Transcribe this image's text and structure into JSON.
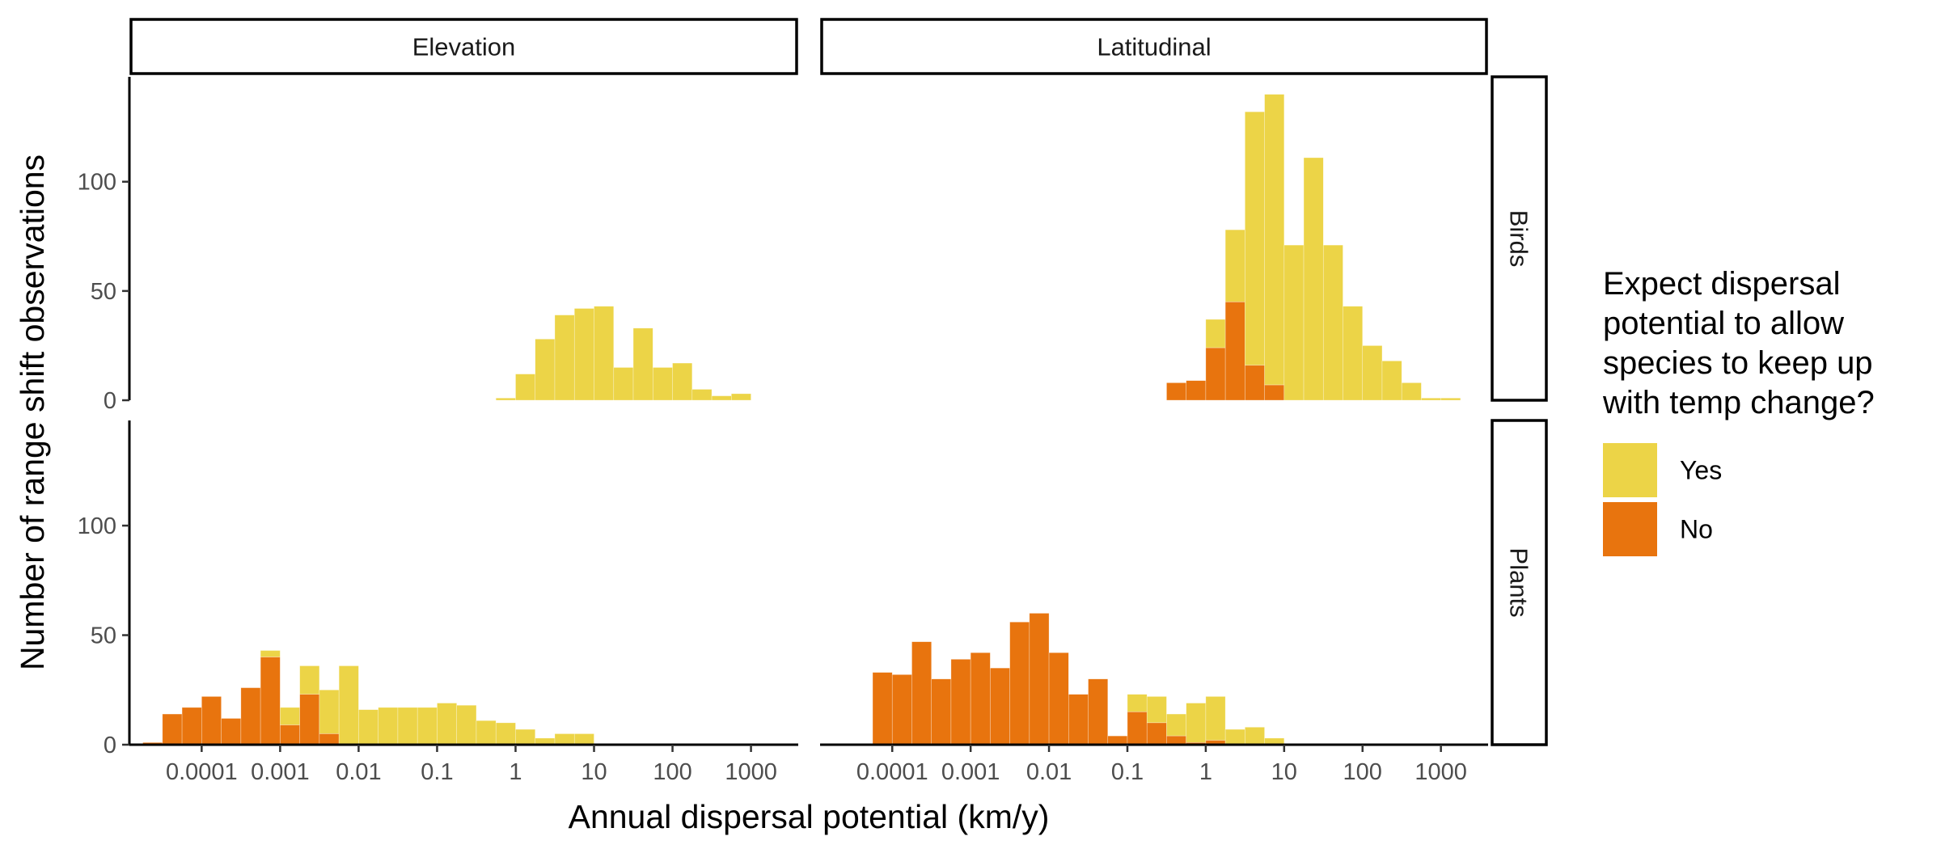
{
  "chart_data": {
    "type": "bar",
    "subtype": "stacked histogram, faceted",
    "xlabel": "Annual dispersal potential (km/y)",
    "ylabel": "Number of range shift observations",
    "x_scale": "log10",
    "xlim": [
      1.2e-05,
      4000
    ],
    "ylim": [
      0,
      148
    ],
    "x_ticks": [
      {
        "value": 0.0001,
        "label": "0.0001"
      },
      {
        "value": 0.001,
        "label": "0.001"
      },
      {
        "value": 0.01,
        "label": "0.01"
      },
      {
        "value": 0.1,
        "label": "0.1"
      },
      {
        "value": 1,
        "label": "1"
      },
      {
        "value": 10,
        "label": "10"
      },
      {
        "value": 100,
        "label": "100"
      },
      {
        "value": 1000,
        "label": "1000"
      }
    ],
    "y_ticks": [
      {
        "value": 0,
        "label": "0"
      },
      {
        "value": 50,
        "label": "50"
      },
      {
        "value": 100,
        "label": "100"
      }
    ],
    "column_facets": [
      "Elevation",
      "Latitudinal"
    ],
    "row_facets": [
      "Birds",
      "Plants"
    ],
    "legend": {
      "title": [
        "Expect dispersal",
        "potential to allow",
        "species to keep up",
        "with temp change?"
      ],
      "entries": [
        {
          "name": "Yes",
          "color": "#ECD447"
        },
        {
          "name": "No",
          "color": "#E8740E"
        }
      ],
      "position": "right"
    },
    "bin_log_start": -4.75,
    "bin_log_width": 0.25,
    "panels": [
      {
        "row": "Birds",
        "col": "Elevation",
        "yes": [
          0,
          0,
          0,
          0,
          0,
          0,
          0,
          0,
          0,
          0,
          0,
          0,
          0,
          0,
          0,
          0,
          0,
          0,
          1,
          12,
          28,
          39,
          42,
          43,
          15,
          33,
          15,
          17,
          5,
          2,
          3
        ],
        "no": [
          0,
          0,
          0,
          0,
          0,
          0,
          0,
          0,
          0,
          0,
          0,
          0,
          0,
          0,
          0,
          0,
          0,
          0,
          0,
          0,
          0,
          0,
          0,
          0,
          0,
          0,
          0,
          0,
          0,
          0,
          0
        ]
      },
      {
        "row": "Birds",
        "col": "Latitudinal",
        "yes": [
          0,
          0,
          0,
          0,
          0,
          0,
          0,
          0,
          0,
          0,
          0,
          0,
          0,
          0,
          0,
          0,
          0,
          8,
          9,
          37,
          78,
          132,
          140,
          71,
          111,
          71,
          43,
          25,
          18,
          8,
          1,
          1
        ],
        "no": [
          0,
          0,
          0,
          0,
          0,
          0,
          0,
          0,
          0,
          0,
          0,
          0,
          0,
          0,
          0,
          0,
          0,
          8,
          9,
          24,
          45,
          16,
          7,
          0,
          0,
          0,
          0,
          0,
          0,
          0,
          0,
          0
        ]
      },
      {
        "row": "Plants",
        "col": "Elevation",
        "yes": [
          1,
          14,
          17,
          22,
          12,
          26,
          43,
          17,
          36,
          25,
          36,
          16,
          17,
          17,
          17,
          19,
          18,
          11,
          10,
          7,
          3,
          5,
          5
        ],
        "no": [
          1,
          14,
          17,
          22,
          12,
          26,
          40,
          9,
          23,
          5,
          0,
          0,
          0,
          0,
          0,
          0,
          0,
          0,
          0,
          0,
          0,
          0,
          0
        ]
      },
      {
        "row": "Plants",
        "col": "Latitudinal",
        "yes": [
          0,
          0,
          33,
          32,
          47,
          30,
          39,
          42,
          35,
          56,
          60,
          42,
          23,
          30,
          4,
          23,
          22,
          14,
          19,
          22,
          7,
          8,
          3
        ],
        "no": [
          0,
          0,
          33,
          32,
          47,
          30,
          39,
          42,
          35,
          56,
          60,
          42,
          23,
          30,
          4,
          15,
          10,
          4,
          1,
          2,
          0,
          0,
          0
        ]
      }
    ]
  }
}
